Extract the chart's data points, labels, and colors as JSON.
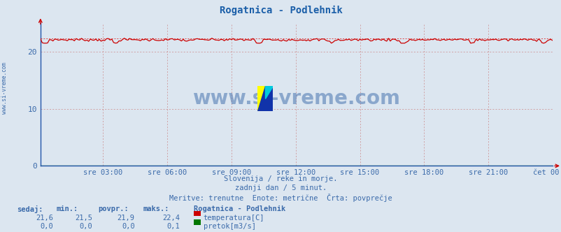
{
  "title": "Rogatnica - Podlehnik",
  "title_color": "#1a5ea8",
  "background_color": "#dce6f0",
  "plot_background": "#dce6f0",
  "x_labels": [
    "sre 03:00",
    "sre 06:00",
    "sre 09:00",
    "sre 12:00",
    "sre 15:00",
    "sre 18:00",
    "sre 21:00",
    "čet 00:00"
  ],
  "x_ticks_frac": [
    0.125,
    0.25,
    0.375,
    0.5,
    0.625,
    0.75,
    0.875,
    1.0
  ],
  "n_points": 288,
  "temp_mean": 22.0,
  "temp_base": 22.1,
  "temp_dotted": 22.3,
  "temp_min_val": 21.5,
  "temp_max_val": 22.4,
  "temp_color": "#cc0000",
  "temp_dotted_color": "#dd4444",
  "flow_color": "#007700",
  "ylim_min": 0,
  "ylim_max": 25,
  "yticks": [
    0,
    10,
    20
  ],
  "grid_color_v": "#cc8888",
  "grid_color_h": "#cc8888",
  "axis_color": "#2255aa",
  "watermark": "www.si-vreme.com",
  "watermark_color": "#3a6aaa",
  "footer_line1": "Slovenija / reke in morje.",
  "footer_line2": "zadnji dan / 5 minut.",
  "footer_line3": "Meritve: trenutne  Enote: metrične  Črta: povprečje",
  "footer_color": "#3a6aaa",
  "label_sedaj": "sedaj:",
  "label_min": "min.:",
  "label_povpr": "povpr.:",
  "label_maks": "maks.:",
  "label_station": "Rogatnica - Podlehnik",
  "label_temp": "temperatura[C]",
  "label_flow": "pretok[m3/s]",
  "val_temp_sedaj": "21,6",
  "val_temp_min": "21,5",
  "val_temp_povpr": "21,9",
  "val_temp_maks": "22,4",
  "val_flow_sedaj": "0,0",
  "val_flow_min": "0,0",
  "val_flow_povpr": "0,0",
  "val_flow_maks": "0,1",
  "sidebar_text": "www.si-vreme.com",
  "sidebar_color": "#3a6aaa"
}
